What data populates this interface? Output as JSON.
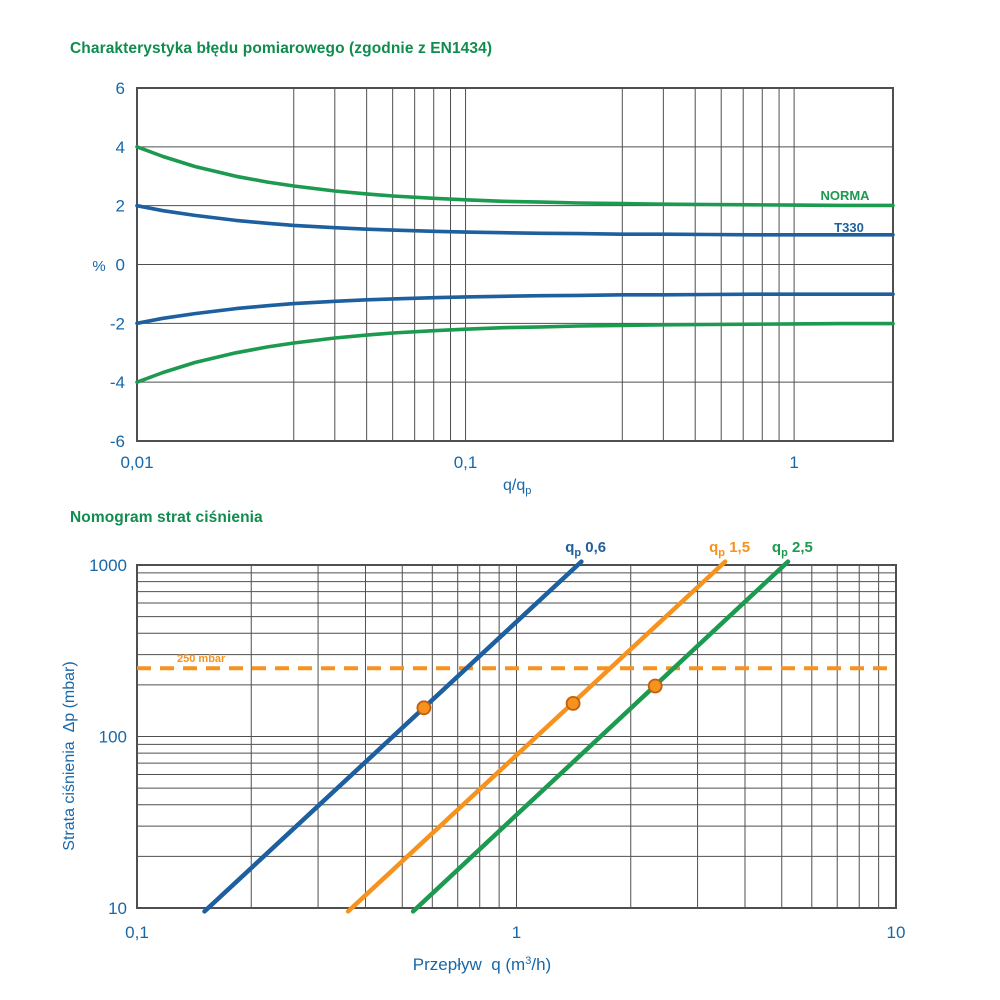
{
  "colors": {
    "blue": "#1d5f9f",
    "green": "#1b9a50",
    "orange": "#f6921e",
    "dot_fill": "#f6921e",
    "dot_stroke": "#c05f10",
    "grid": "#4f4f4f",
    "text_blue": "#1767a9",
    "title_green": "#108c4e",
    "background": "#ffffff"
  },
  "chart_data": [
    {
      "id": "error",
      "type": "line",
      "title": "Charakterystyka błędu pomiarowego (zgodnie z EN1434)",
      "xlabel": "q/qp",
      "xlabel_parts": {
        "pre": "q/q",
        "sub": "p"
      },
      "ylabel": "%",
      "xscale": "log",
      "yscale": "linear",
      "xlim": [
        0.01,
        2
      ],
      "ylim": [
        -6,
        6
      ],
      "grid": true,
      "grid_x": [
        0.03,
        0.04,
        0.05,
        0.06,
        0.07,
        0.08,
        0.09,
        0.1,
        0.3,
        0.4,
        0.5,
        0.6,
        0.7,
        0.8,
        0.9,
        1
      ],
      "grid_y": [
        -4,
        -2,
        0,
        2,
        4
      ],
      "x_ticks": [
        {
          "v": 0.01,
          "t": "0,01"
        },
        {
          "v": 0.1,
          "t": "0,1"
        },
        {
          "v": 1,
          "t": "1"
        }
      ],
      "y_ticks": [
        {
          "v": 6,
          "t": "6"
        },
        {
          "v": 4,
          "t": "4"
        },
        {
          "v": 2,
          "t": "2"
        },
        {
          "v": 0,
          "t": "0"
        },
        {
          "v": -2,
          "t": "-2"
        },
        {
          "v": -4,
          "t": "-4"
        },
        {
          "v": -6,
          "t": "-6"
        }
      ],
      "x": [
        0.01,
        0.012,
        0.015,
        0.02,
        0.025,
        0.03,
        0.04,
        0.05,
        0.06,
        0.08,
        0.1,
        0.13,
        0.17,
        0.22,
        0.3,
        0.4,
        0.55,
        0.75,
        1,
        1.4,
        2
      ],
      "series": [
        {
          "name": "NORMA",
          "color": "green",
          "labeled": true,
          "values": [
            4,
            3.67,
            3.33,
            3,
            2.8,
            2.67,
            2.5,
            2.4,
            2.33,
            2.25,
            2.2,
            2.15,
            2.12,
            2.09,
            2.07,
            2.05,
            2.04,
            2.03,
            2.02,
            2.01,
            2.01
          ]
        },
        {
          "name": "NORMA dolna",
          "color": "green",
          "labeled": false,
          "values": [
            -4,
            -3.67,
            -3.33,
            -3,
            -2.8,
            -2.67,
            -2.5,
            -2.4,
            -2.33,
            -2.25,
            -2.2,
            -2.15,
            -2.12,
            -2.09,
            -2.07,
            -2.05,
            -2.04,
            -2.03,
            -2.02,
            -2.01,
            -2.01
          ]
        },
        {
          "name": "T330",
          "color": "blue",
          "labeled": true,
          "values": [
            2,
            1.83,
            1.67,
            1.5,
            1.4,
            1.33,
            1.25,
            1.2,
            1.17,
            1.13,
            1.1,
            1.08,
            1.06,
            1.05,
            1.03,
            1.03,
            1.02,
            1.01,
            1.01,
            1.01,
            1.01
          ]
        },
        {
          "name": "T330 dolna",
          "color": "blue",
          "labeled": false,
          "values": [
            -2,
            -1.83,
            -1.67,
            -1.5,
            -1.4,
            -1.33,
            -1.25,
            -1.2,
            -1.17,
            -1.13,
            -1.1,
            -1.08,
            -1.06,
            -1.05,
            -1.03,
            -1.03,
            -1.02,
            -1.01,
            -1.01,
            -1.01,
            -1.01
          ]
        }
      ]
    },
    {
      "id": "nomogram",
      "type": "line",
      "title": "Nomogram strat ciśnienia",
      "xlabel": "Przepływ q (m³/h)",
      "xlabel_parts": {
        "pre": "Przepływ  q (m",
        "sup": "3",
        "post": "/h)"
      },
      "ylabel": "Strata ciśnienia  Δp (mbar)",
      "xscale": "log",
      "yscale": "log",
      "xlim": [
        0.1,
        10
      ],
      "ylim": [
        10,
        1000
      ],
      "grid": true,
      "grid_x": [
        0.2,
        0.3,
        0.4,
        0.5,
        0.6,
        0.7,
        0.8,
        0.9,
        1,
        2,
        3,
        4,
        5,
        6,
        7,
        8,
        9
      ],
      "grid_y": [
        20,
        30,
        40,
        50,
        60,
        70,
        80,
        90,
        100,
        200,
        300,
        400,
        500,
        600,
        700,
        800,
        900
      ],
      "x_ticks": [
        {
          "v": 0.1,
          "t": "0,1"
        },
        {
          "v": 1,
          "t": "1"
        },
        {
          "v": 10,
          "t": "10"
        }
      ],
      "y_ticks": [
        {
          "v": 1000,
          "t": "1000"
        },
        {
          "v": 100,
          "t": "100"
        },
        {
          "v": 10,
          "t": "10"
        }
      ],
      "series": [
        {
          "name": "qp 0,6",
          "label_parts": {
            "pre": "q",
            "sub": "p",
            "rest": " 0,6"
          },
          "color": "blue",
          "points": [
            [
              0.154,
              10
            ],
            [
              1.45,
              1000
            ]
          ],
          "marker": {
            "q": 0.57,
            "dp": 147
          }
        },
        {
          "name": "qp 1,5",
          "label_parts": {
            "pre": "q",
            "sub": "p",
            "rest": " 1,5"
          },
          "color": "orange",
          "points": [
            [
              0.368,
              10
            ],
            [
              3.47,
              1000
            ]
          ],
          "marker": {
            "q": 1.41,
            "dp": 156
          }
        },
        {
          "name": "qp 2,5",
          "label_parts": {
            "pre": "q",
            "sub": "p",
            "rest": " 2,5"
          },
          "color": "green",
          "points": [
            [
              0.546,
              10
            ],
            [
              5.08,
              1000
            ]
          ],
          "marker": {
            "q": 2.32,
            "dp": 197
          }
        }
      ],
      "reference_line": {
        "dp": 250,
        "label": "250 mbar",
        "style": "dashed",
        "color": "orange"
      }
    }
  ]
}
